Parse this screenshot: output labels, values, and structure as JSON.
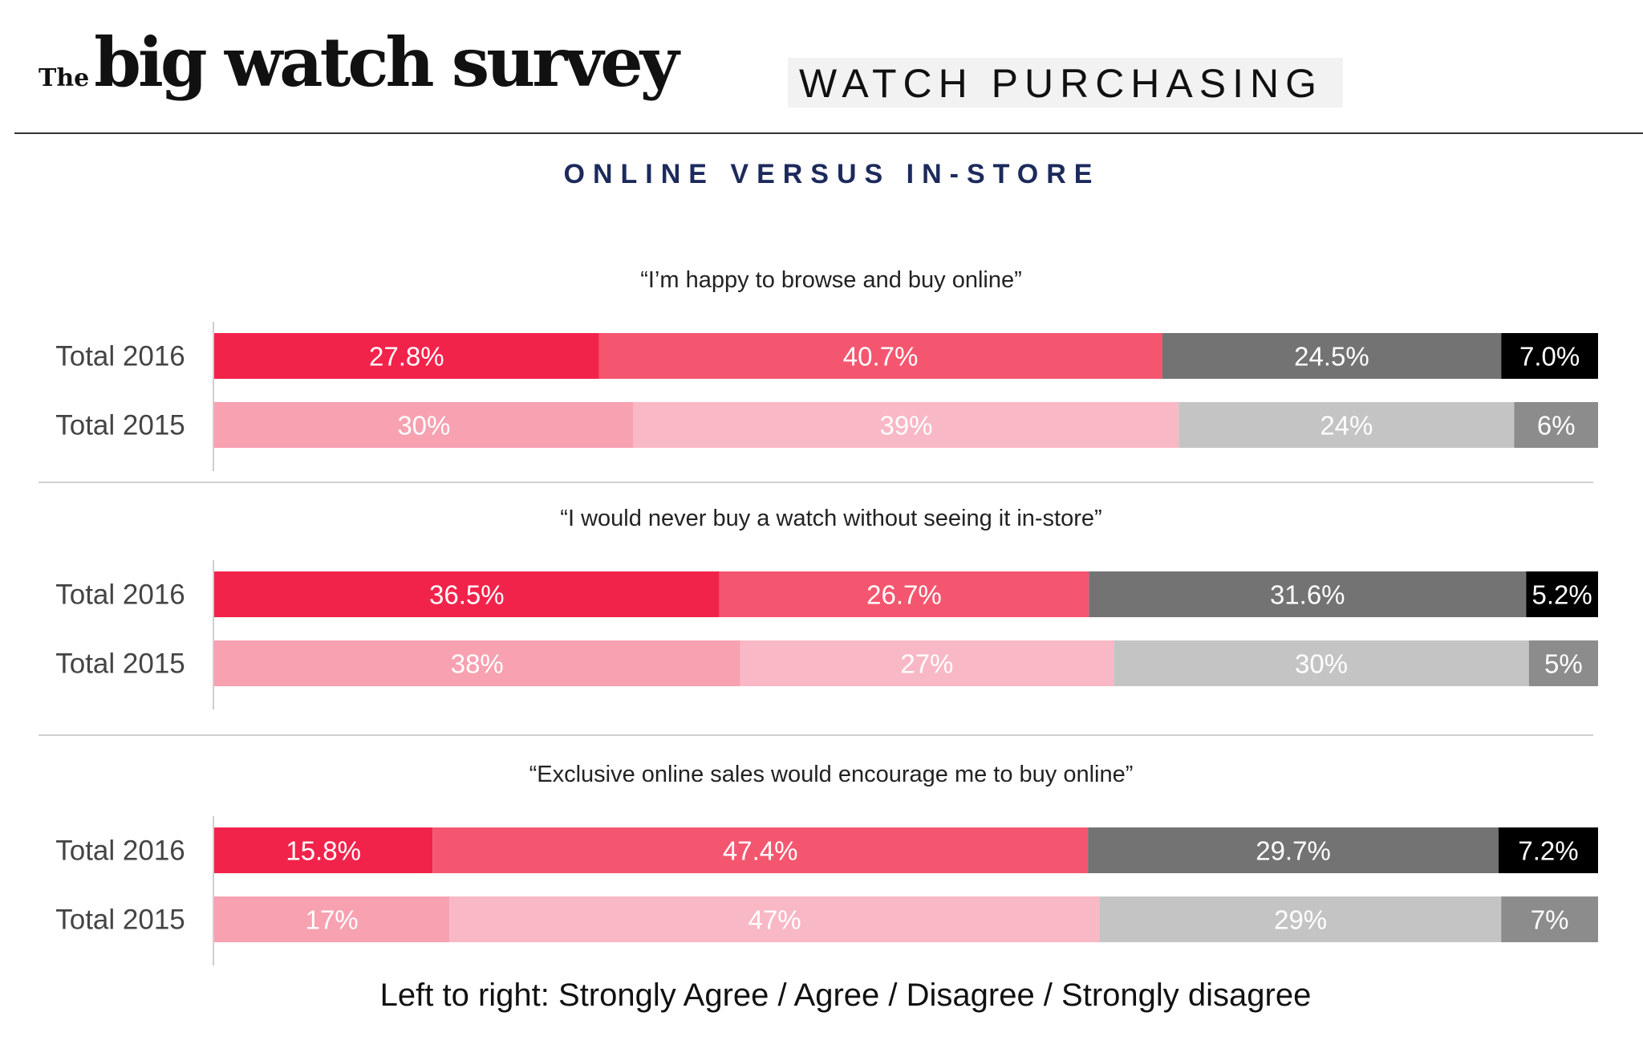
{
  "header": {
    "brand_prefix": "The",
    "brand_name": "big watch survey",
    "section": "WATCH PURCHASING"
  },
  "chart_data": {
    "type": "bar",
    "stacked": true,
    "orientation": "horizontal",
    "title": "ONLINE VERSUS IN-STORE",
    "legend_note": "Left to right: Strongly Agree / Agree / Disagree / Strongly disagree",
    "colors": {
      "2016": [
        "#f2234b",
        "#f5566f",
        "#737373",
        "#000000"
      ],
      "2015": [
        "#f7a1b1",
        "#f9b8c5",
        "#c4c4c4",
        "#8c8c8c"
      ]
    },
    "groups": [
      {
        "statement": "“I’m happy to browse and buy online”",
        "rows": [
          {
            "label": "Total 2016",
            "year": "2016",
            "values": [
              27.8,
              40.7,
              24.5,
              7.0
            ],
            "labels": [
              "27.8%",
              "40.7%",
              "24.5%",
              "7.0%"
            ]
          },
          {
            "label": "Total 2015",
            "year": "2015",
            "values": [
              30,
              39,
              24,
              6
            ],
            "labels": [
              "30%",
              "39%",
              "24%",
              "6%"
            ]
          }
        ]
      },
      {
        "statement": "“I would never buy a watch without seeing it in-store”",
        "rows": [
          {
            "label": "Total 2016",
            "year": "2016",
            "values": [
              36.5,
              26.7,
              31.6,
              5.2
            ],
            "labels": [
              "36.5%",
              "26.7%",
              "31.6%",
              "5.2%"
            ]
          },
          {
            "label": "Total 2015",
            "year": "2015",
            "values": [
              38,
              27,
              30,
              5
            ],
            "labels": [
              "38%",
              "27%",
              "30%",
              "5%"
            ]
          }
        ]
      },
      {
        "statement": "“Exclusive online sales would encourage me to buy online”",
        "rows": [
          {
            "label": "Total 2016",
            "year": "2016",
            "values": [
              15.8,
              47.4,
              29.7,
              7.2
            ],
            "labels": [
              "15.8%",
              "47.4%",
              "29.7%",
              "7.2%"
            ]
          },
          {
            "label": "Total 2015",
            "year": "2015",
            "values": [
              17,
              47,
              29,
              7
            ],
            "labels": [
              "17%",
              "47%",
              "29%",
              "7%"
            ]
          }
        ]
      }
    ]
  }
}
